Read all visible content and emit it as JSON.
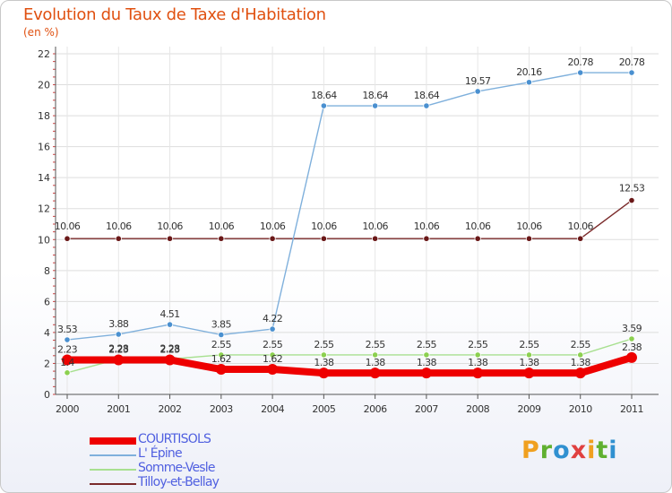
{
  "page": {
    "title": "Evolution du Taux de Taxe d'Habitation",
    "subtitle": "(en %)"
  },
  "colors": {
    "title": "#e05010",
    "axis_text": "#333333",
    "grid": "#dddddd",
    "legend_text": "#5060e0"
  },
  "logo": {
    "text": "Proxiti",
    "letters": [
      {
        "char": "P",
        "color": "#f0a020"
      },
      {
        "char": "r",
        "color": "#60b030"
      },
      {
        "char": "o",
        "color": "#3090d0"
      },
      {
        "char": "x",
        "color": "#e04040"
      },
      {
        "char": "i",
        "color": "#f0a020"
      },
      {
        "char": "t",
        "color": "#60b030"
      },
      {
        "char": "i",
        "color": "#3090d0"
      }
    ]
  },
  "chart_data": {
    "type": "line",
    "title": "Evolution du Taux de Taxe d'Habitation",
    "subtitle": "(en %)",
    "xlabel": "",
    "ylabel": "",
    "categories": [
      "2000",
      "2001",
      "2002",
      "2003",
      "2004",
      "2005",
      "2006",
      "2007",
      "2008",
      "2009",
      "2010",
      "2011"
    ],
    "ylim": [
      0,
      22
    ],
    "yticks": [
      0,
      2,
      4,
      6,
      8,
      10,
      12,
      14,
      16,
      18,
      20,
      22
    ],
    "grid": true,
    "legend_position": "bottom-left",
    "series": [
      {
        "name": "COURTISOLS",
        "color": "#ee0000",
        "marker_color": "#ee0000",
        "style": "thick",
        "values": [
          2.23,
          2.23,
          2.23,
          1.62,
          1.62,
          1.38,
          1.38,
          1.38,
          1.38,
          1.38,
          1.38,
          2.38
        ],
        "labels": [
          "2.23",
          "2.23",
          "2.23",
          "1.62",
          "1.62",
          "1.38",
          "1.38",
          "1.38",
          "1.38",
          "1.38",
          "1.38",
          "2.38"
        ]
      },
      {
        "name": "L' Épine",
        "color": "#7fb0dc",
        "marker_color": "#4a90d0",
        "style": "thin",
        "values": [
          3.53,
          3.88,
          4.51,
          3.85,
          4.22,
          18.64,
          18.64,
          18.64,
          19.57,
          20.16,
          20.78,
          20.78
        ],
        "labels": [
          "3.53",
          "3.88",
          "4.51",
          "3.85",
          "4.22",
          "18.64",
          "18.64",
          "18.64",
          "19.57",
          "20.16",
          "20.78",
          "20.78"
        ]
      },
      {
        "name": "Somme-Vesle",
        "color": "#a8e090",
        "marker_color": "#8cd050",
        "style": "thin",
        "values": [
          1.4,
          2.28,
          2.28,
          2.55,
          2.55,
          2.55,
          2.55,
          2.55,
          2.55,
          2.55,
          2.55,
          3.59
        ],
        "labels": [
          "1.4",
          "2.28",
          "2.28",
          "2.55",
          "2.55",
          "2.55",
          "2.55",
          "2.55",
          "2.55",
          "2.55",
          "2.55",
          "3.59"
        ]
      },
      {
        "name": "Tilloy-et-Bellay",
        "color": "#7a2a2a",
        "marker_color": "#6a1818",
        "style": "thin",
        "values": [
          10.06,
          10.06,
          10.06,
          10.06,
          10.06,
          10.06,
          10.06,
          10.06,
          10.06,
          10.06,
          10.06,
          12.53
        ],
        "labels": [
          "10.06",
          "10.06",
          "10.06",
          "10.06",
          "10.06",
          "10.06",
          "10.06",
          "10.06",
          "10.06",
          "10.06",
          "10.06",
          "12.53"
        ]
      }
    ]
  }
}
